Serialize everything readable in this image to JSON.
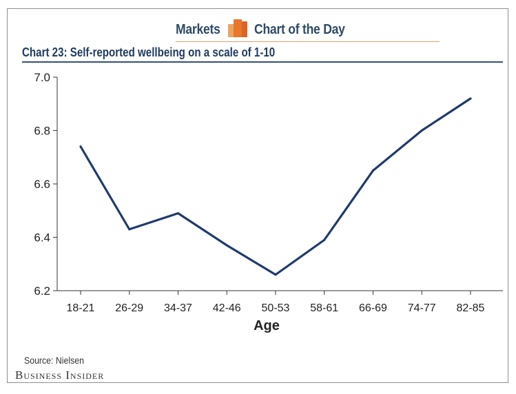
{
  "header": {
    "brand_left": "Markets",
    "brand_right": "Chart of the Day",
    "logo_icon": "stacked-bars-logo-icon",
    "logo_colors": [
      "#f0a35e",
      "#e8762b",
      "#d9652a"
    ]
  },
  "chart_title": "Chart 23: Self-reported wellbeing on a scale of 1-10",
  "footer": {
    "source": "Source: Nielsen",
    "publisher": "Business Insider"
  },
  "chart_data": {
    "type": "line",
    "title": "Chart 23: Self-reported wellbeing on a scale of 1-10",
    "xlabel": "Age",
    "ylabel": "",
    "categories": [
      "18-21",
      "26-29",
      "34-37",
      "42-46",
      "50-53",
      "58-61",
      "66-69",
      "74-77",
      "82-85"
    ],
    "series": [
      {
        "values": [
          6.74,
          6.43,
          6.49,
          6.37,
          6.26,
          6.39,
          6.65,
          6.8,
          6.92
        ],
        "color": "#1f3a6e"
      }
    ],
    "ylim": [
      6.2,
      7.0
    ],
    "yticks": [
      6.2,
      6.4,
      6.6,
      6.8,
      7.0
    ],
    "ytick_labels": [
      "6.2",
      "6.4",
      "6.6",
      "6.8",
      "7.0"
    ],
    "grid": false,
    "legend": "none"
  }
}
